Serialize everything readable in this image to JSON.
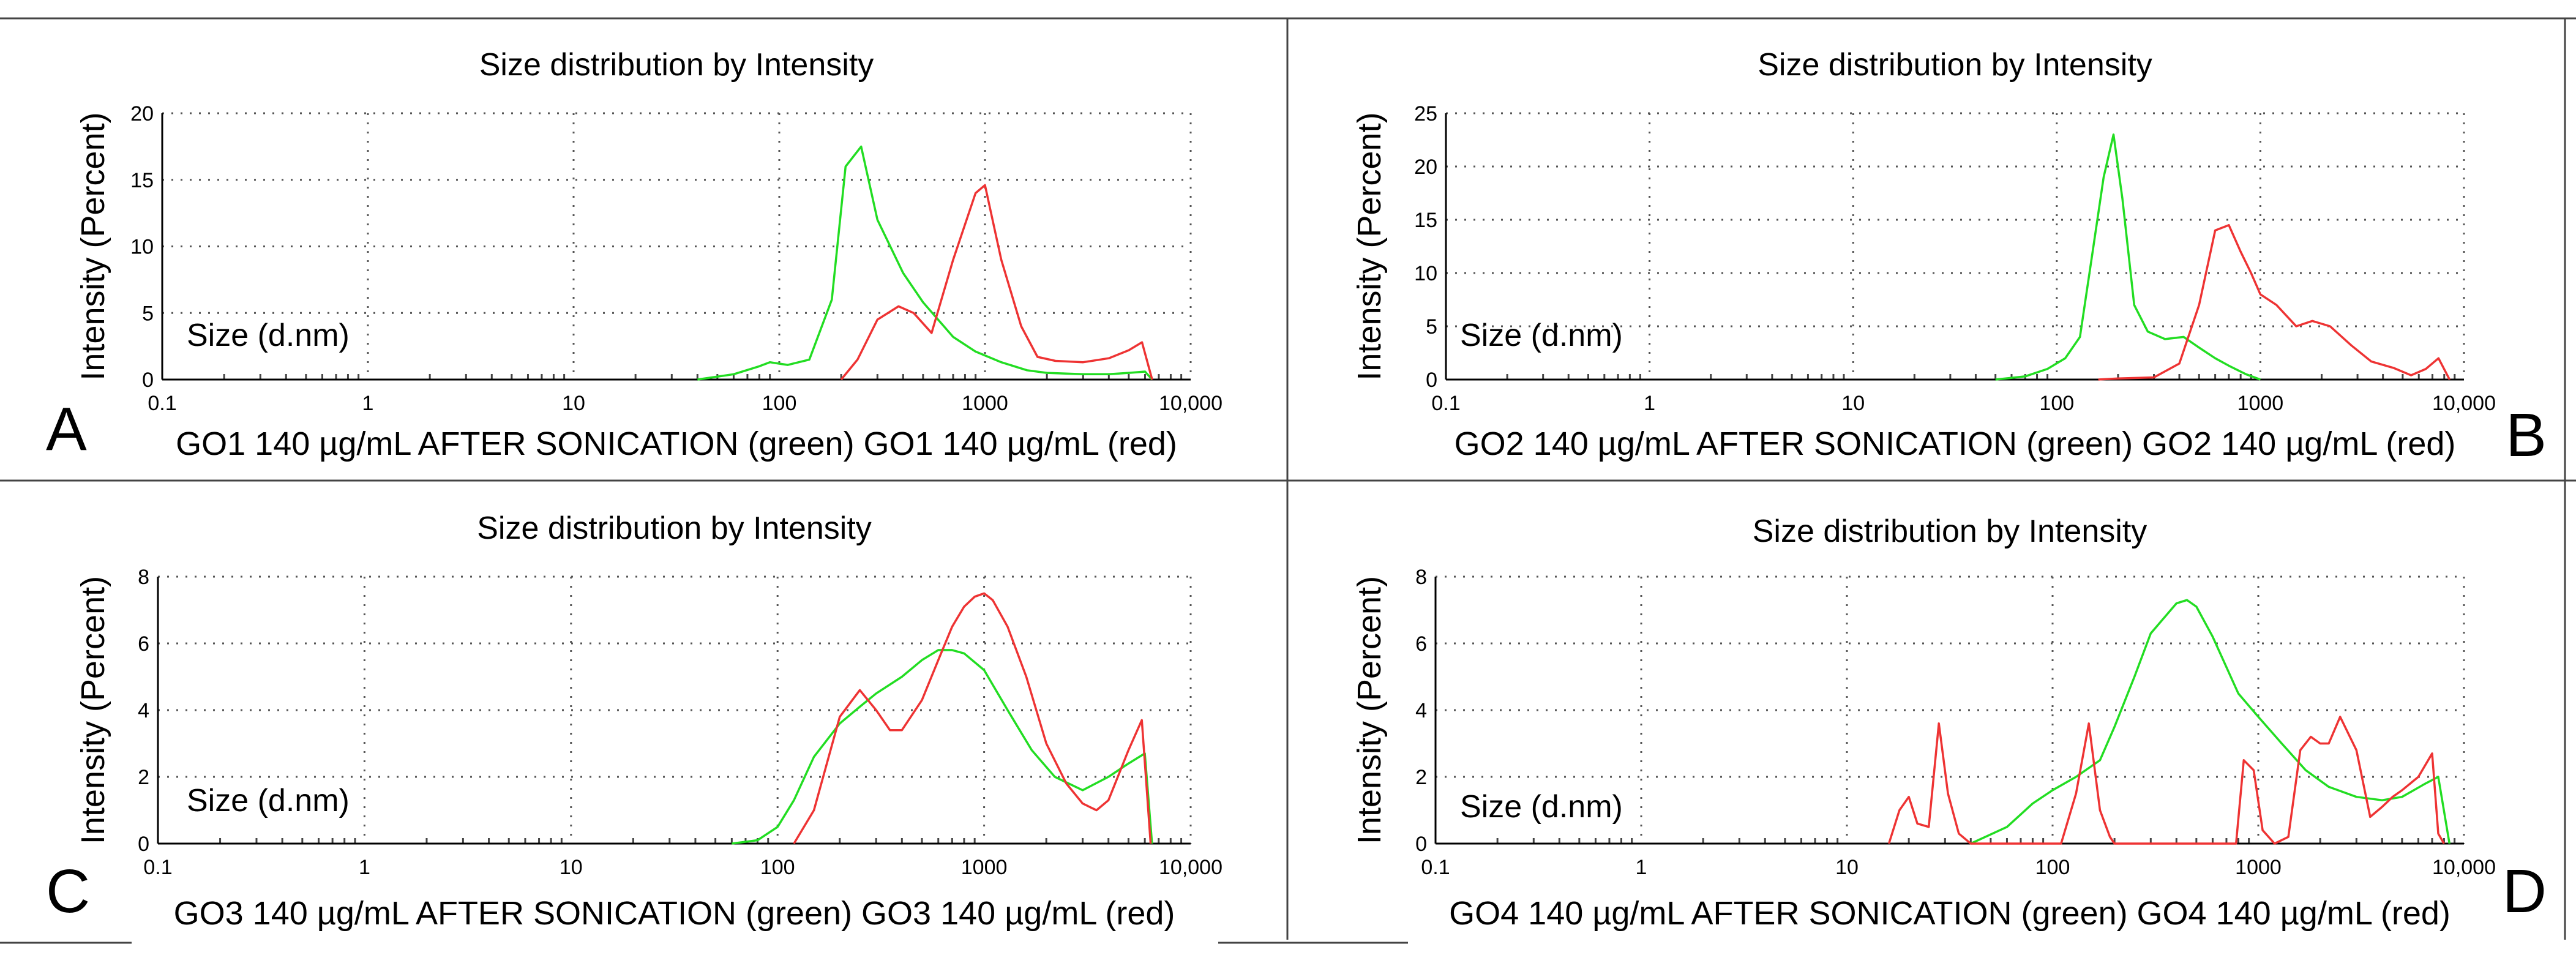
{
  "colors": {
    "green": "#22dd22",
    "red": "#ee3333"
  },
  "chart_data": [
    {
      "type": "line",
      "panel": "A",
      "title": "Size distribution by Intensity",
      "ylabel": "Intensity (Percent)",
      "xlabel": "Size (d.nm)",
      "xscale": "log",
      "xlim": [
        0.1,
        10000
      ],
      "ylim": [
        0,
        20
      ],
      "yticks": [
        "0",
        "5",
        "10",
        "15",
        "20"
      ],
      "xticks": [
        "0.1",
        "1",
        "10",
        "100",
        "1000",
        "10,000"
      ],
      "caption": "GO1 140 µg/mL  AFTER SONICATION (green) GO1 140 µg/mL (red)",
      "series": [
        {
          "color": "green",
          "x": [
            40,
            60,
            80,
            90,
            110,
            140,
            180,
            210,
            250,
            300,
            400,
            500,
            700,
            900,
            1200,
            1600,
            2000,
            3000,
            4000,
            5000,
            6000,
            6500
          ],
          "y": [
            0,
            0.4,
            1.0,
            1.3,
            1.1,
            1.5,
            6,
            16,
            17.5,
            12,
            8,
            5.8,
            3.2,
            2.1,
            1.3,
            0.7,
            0.5,
            0.4,
            0.4,
            0.5,
            0.6,
            0
          ]
        },
        {
          "color": "red",
          "x": [
            200,
            240,
            300,
            380,
            450,
            550,
            700,
            900,
            1000,
            1200,
            1500,
            1800,
            2200,
            3000,
            4000,
            5000,
            5800,
            6500
          ],
          "y": [
            0,
            1.5,
            4.5,
            5.5,
            5.0,
            3.5,
            9,
            14,
            14.6,
            9,
            4,
            1.7,
            1.4,
            1.3,
            1.6,
            2.2,
            2.8,
            0
          ]
        }
      ]
    },
    {
      "type": "line",
      "panel": "B",
      "title": "Size distribution by Intensity",
      "ylabel": "Intensity (Percent)",
      "xlabel": "Size (d.nm)",
      "xscale": "log",
      "xlim": [
        0.1,
        10000
      ],
      "ylim": [
        0,
        25
      ],
      "yticks": [
        "0",
        "5",
        "10",
        "15",
        "20",
        "25"
      ],
      "xticks": [
        "0.1",
        "1",
        "10",
        "100",
        "1000",
        "10,000"
      ],
      "caption": "GO2 140 µg/mL  AFTER SONICATION (green) GO2 140 µg/mL (red)",
      "series": [
        {
          "color": "green",
          "x": [
            50,
            70,
            90,
            110,
            130,
            150,
            170,
            190,
            210,
            240,
            280,
            340,
            420,
            500,
            600,
            700,
            850,
            1000
          ],
          "y": [
            0,
            0.3,
            1,
            2,
            4,
            12,
            19,
            23,
            17,
            7,
            4.5,
            3.8,
            4,
            3,
            2,
            1.3,
            0.5,
            0
          ]
        },
        {
          "color": "red",
          "x": [
            160,
            200,
            300,
            400,
            500,
            600,
            700,
            800,
            900,
            1000,
            1200,
            1500,
            1800,
            2200,
            2800,
            3500,
            4500,
            5500,
            6500,
            7500,
            8500
          ],
          "y": [
            0,
            0.1,
            0.2,
            1.5,
            7,
            14,
            14.5,
            12,
            10,
            8,
            7,
            5,
            5.5,
            5,
            3.2,
            1.7,
            1.1,
            0.4,
            1.0,
            2.0,
            0
          ]
        }
      ]
    },
    {
      "type": "line",
      "panel": "C",
      "title": "Size distribution by Intensity",
      "ylabel": "Intensity (Percent)",
      "xlabel": "Size (d.nm)",
      "xscale": "log",
      "xlim": [
        0.1,
        10000
      ],
      "ylim": [
        0,
        8
      ],
      "yticks": [
        "0",
        "2",
        "4",
        "6",
        "8"
      ],
      "xticks": [
        "0.1",
        "1",
        "10",
        "100",
        "1000",
        "10,000"
      ],
      "caption": "GO3 140 µg/mL  AFTER SONICATION (green) GO3 140 µg/mL (red)",
      "series": [
        {
          "color": "green",
          "x": [
            60,
            80,
            100,
            120,
            150,
            200,
            250,
            300,
            400,
            500,
            600,
            700,
            800,
            1000,
            1300,
            1700,
            2200,
            3000,
            4000,
            5000,
            6000,
            6500
          ],
          "y": [
            0,
            0.1,
            0.5,
            1.3,
            2.6,
            3.6,
            4.1,
            4.5,
            5.0,
            5.5,
            5.8,
            5.8,
            5.7,
            5.2,
            4.0,
            2.8,
            2.0,
            1.6,
            2.0,
            2.4,
            2.7,
            0
          ]
        },
        {
          "color": "red",
          "x": [
            120,
            150,
            200,
            250,
            300,
            350,
            400,
            500,
            600,
            700,
            800,
            900,
            1000,
            1100,
            1300,
            1600,
            2000,
            2500,
            3000,
            3500,
            4000,
            5000,
            5800,
            6400
          ],
          "y": [
            0,
            1.0,
            3.8,
            4.6,
            4.0,
            3.4,
            3.4,
            4.3,
            5.5,
            6.5,
            7.1,
            7.4,
            7.5,
            7.3,
            6.5,
            5.0,
            3.0,
            1.8,
            1.2,
            1.0,
            1.3,
            2.8,
            3.7,
            0
          ]
        }
      ]
    },
    {
      "type": "line",
      "panel": "D",
      "title": "Size distribution by Intensity",
      "ylabel": "Intensity (Percent)",
      "xlabel": "Size (d.nm)",
      "xscale": "log",
      "xlim": [
        0.1,
        10000
      ],
      "ylim": [
        0,
        8
      ],
      "yticks": [
        "0",
        "2",
        "4",
        "6",
        "8"
      ],
      "xticks": [
        "0.1",
        "1",
        "10",
        "100",
        "1000",
        "10,000"
      ],
      "caption": "GO4 140 µg/mL  AFTER SONICATION (green) GO4 140 µg/mL (red)",
      "series": [
        {
          "color": "green",
          "x": [
            40,
            60,
            80,
            100,
            130,
            170,
            200,
            250,
            300,
            400,
            450,
            500,
            600,
            800,
            1000,
            1300,
            1700,
            2200,
            3000,
            4000,
            5000,
            6500,
            7500,
            8500
          ],
          "y": [
            0,
            0.5,
            1.2,
            1.6,
            2.0,
            2.5,
            3.5,
            5.0,
            6.3,
            7.2,
            7.3,
            7.1,
            6.2,
            4.5,
            3.8,
            3.0,
            2.2,
            1.7,
            1.4,
            1.3,
            1.4,
            1.8,
            2.0,
            0
          ]
        },
        {
          "color": "red",
          "x": [
            16,
            18,
            20,
            22,
            25,
            28,
            31,
            35,
            40,
            110,
            130,
            150,
            170,
            190,
            200,
            780,
            850,
            950,
            1050,
            1200,
            1400,
            1600,
            1800,
            2000,
            2200,
            2500,
            3000,
            3500,
            4000,
            4500,
            5000,
            6000,
            7000,
            7500,
            8000
          ],
          "y": [
            0,
            1.0,
            1.4,
            0.6,
            0.5,
            3.6,
            1.5,
            0.3,
            0,
            0,
            1.5,
            3.6,
            1.0,
            0.2,
            0,
            0,
            2.5,
            2.2,
            0.4,
            0,
            0.2,
            2.8,
            3.2,
            3.0,
            3.0,
            3.8,
            2.8,
            0.8,
            1.1,
            1.4,
            1.6,
            2.0,
            2.7,
            0.3,
            0
          ]
        }
      ]
    }
  ]
}
